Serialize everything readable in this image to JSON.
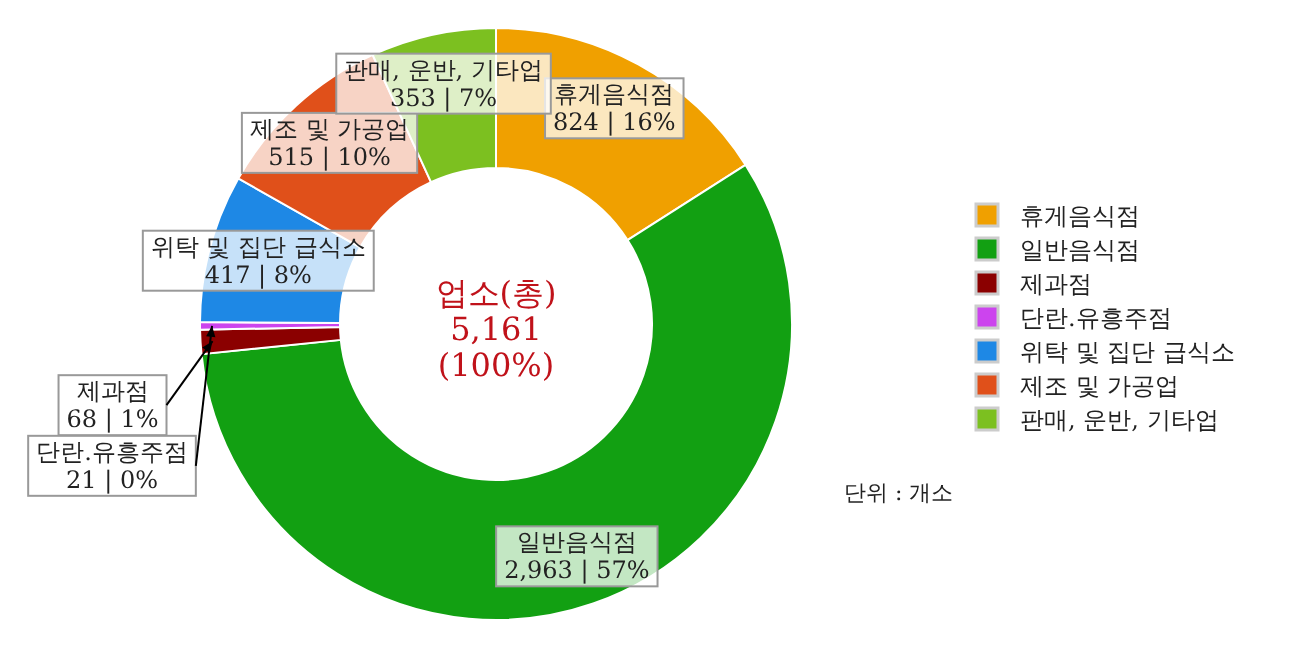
{
  "chart_data": {
    "type": "donut",
    "categories": [
      "휴게음식점",
      "일반음식점",
      "제과점",
      "단란.유흥주점",
      "위탁 및 집단 급식소",
      "제조 및 가공업",
      "판매, 운반, 기타업"
    ],
    "values": [
      824,
      2963,
      68,
      21,
      417,
      515,
      353
    ],
    "colors": [
      "#f0a000",
      "#12a012",
      "#8b0000",
      "#cc44ee",
      "#1e88e5",
      "#e0501a",
      "#7cc020"
    ],
    "value_labels": [
      "824 | 16%",
      "2,963 | 57%",
      "68 | 1%",
      "21 | 0%",
      "417 | 8%",
      "515 | 10%",
      "353 | 7%"
    ],
    "legend": "right",
    "annotations": [
      "업소(총)\n5,161\n(100%)",
      "단위 : 개소"
    ]
  }
}
